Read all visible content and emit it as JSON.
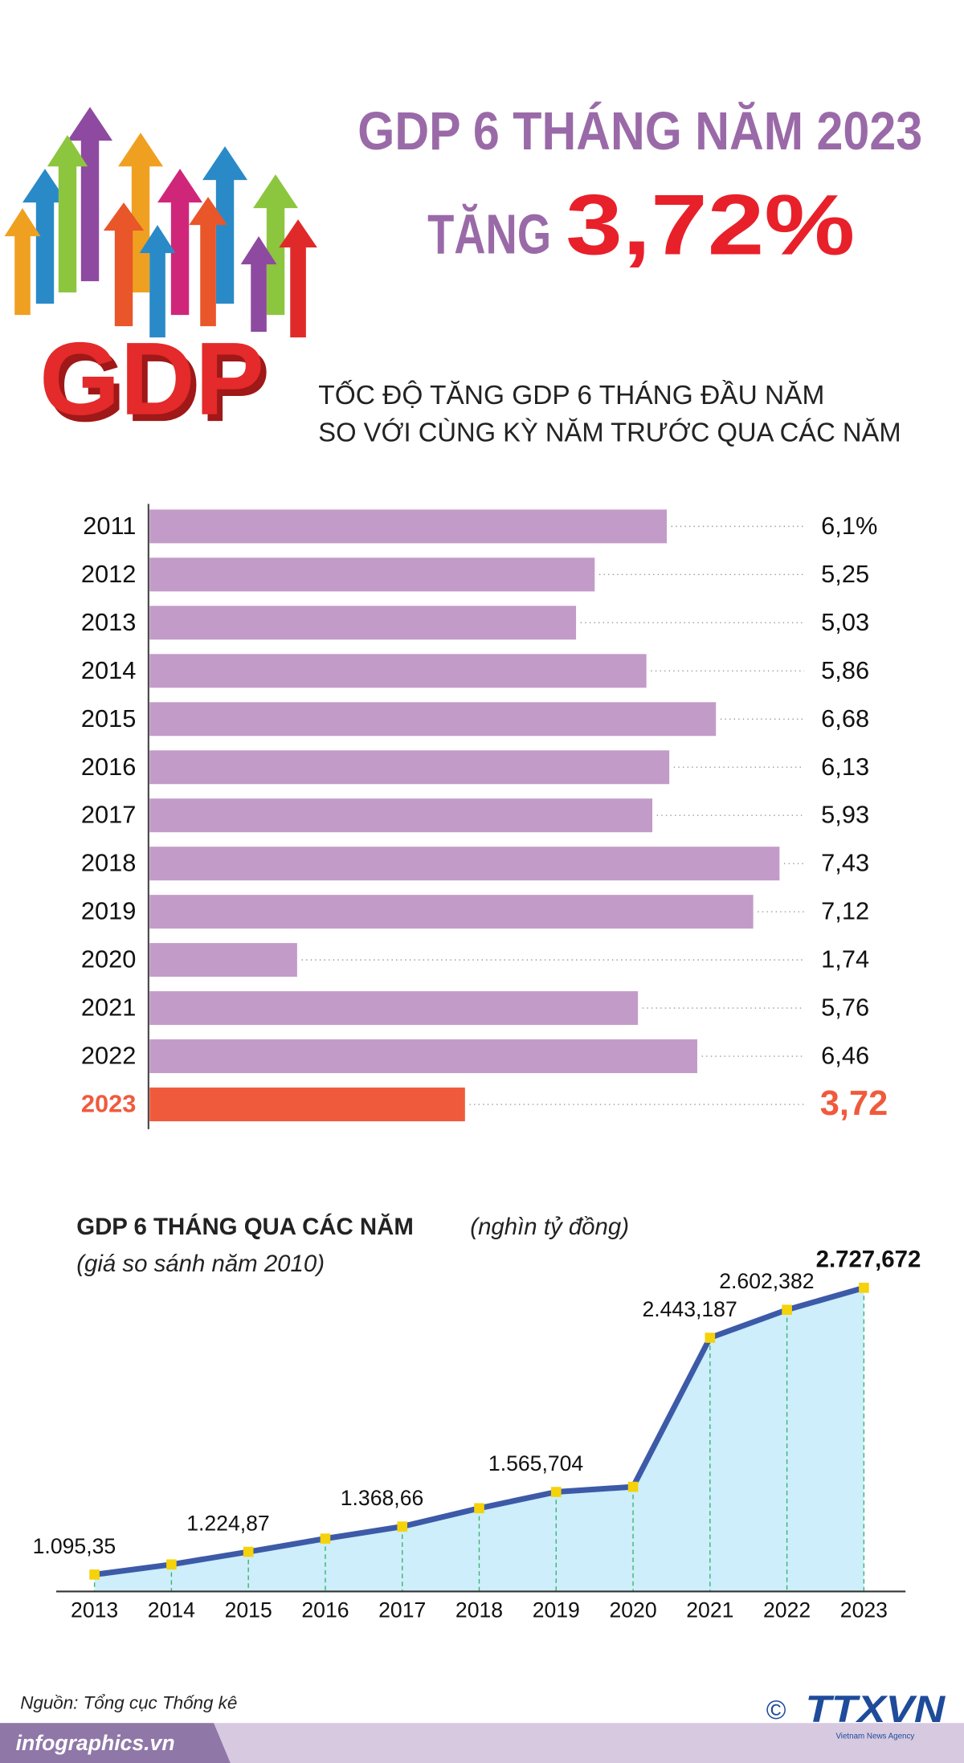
{
  "header": {
    "title": "GDP 6 THÁNG NĂM 2023",
    "prefix": "TĂNG",
    "highlight": "3,72%",
    "logo": "GDP"
  },
  "chart_data": [
    {
      "type": "hbar",
      "title_lines": [
        "TỐC ĐỘ TĂNG GDP 6 THÁNG ĐẦU NĂM",
        "SO VỚI CÙNG KỲ NĂM TRƯỚC QUA CÁC NĂM"
      ],
      "categories": [
        "2011",
        "2012",
        "2013",
        "2014",
        "2015",
        "2016",
        "2017",
        "2018",
        "2019",
        "2020",
        "2021",
        "2022",
        "2023"
      ],
      "values": [
        6.1,
        5.25,
        5.03,
        5.86,
        6.68,
        6.13,
        5.93,
        7.43,
        7.12,
        1.74,
        5.76,
        6.46,
        3.72
      ],
      "value_labels": [
        "6,1%",
        "5,25",
        "5,03",
        "5,86",
        "6,68",
        "6,13",
        "5,93",
        "7,43",
        "7,12",
        "1,74",
        "5,76",
        "6,46",
        "3,72"
      ],
      "color": "#c39bc9",
      "colors": [
        "#c39bc9",
        "#c39bc9",
        "#c39bc9",
        "#c39bc9",
        "#c39bc9",
        "#c39bc9",
        "#c39bc9",
        "#c39bc9",
        "#c39bc9",
        "#c39bc9",
        "#c39bc9",
        "#c39bc9",
        "#f05a3c"
      ]
    },
    {
      "type": "area-line",
      "title": "GDP 6 THÁNG QUA CÁC NĂM",
      "unit": "(nghìn tỷ đồng)",
      "subtitle": "(giá so sánh năm 2010)",
      "categories": [
        "2013",
        "2014",
        "2015",
        "2016",
        "2017",
        "2018",
        "2019",
        "2020",
        "2021",
        "2022",
        "2023"
      ],
      "values": [
        1095.35,
        1153,
        1224.87,
        1300,
        1368.66,
        1473,
        1565.704,
        1595,
        2443.187,
        2602.382,
        2727.672
      ],
      "value_labels": [
        "1.095,35",
        null,
        "1.224,87",
        null,
        "1.368,66",
        null,
        "1.565,704",
        null,
        "2.443,187",
        "2.602,382",
        "2.727,672"
      ],
      "color": "#3d5aa8",
      "fill": "#cdeefa",
      "marker_color": "#f5d20a"
    }
  ],
  "footer": {
    "source": "Nguồn: Tổng cục Thống kê",
    "site": "infographics.vn",
    "copyright": "©",
    "agency": "TTXVN",
    "agency_full": "Vietnam News Agency"
  }
}
